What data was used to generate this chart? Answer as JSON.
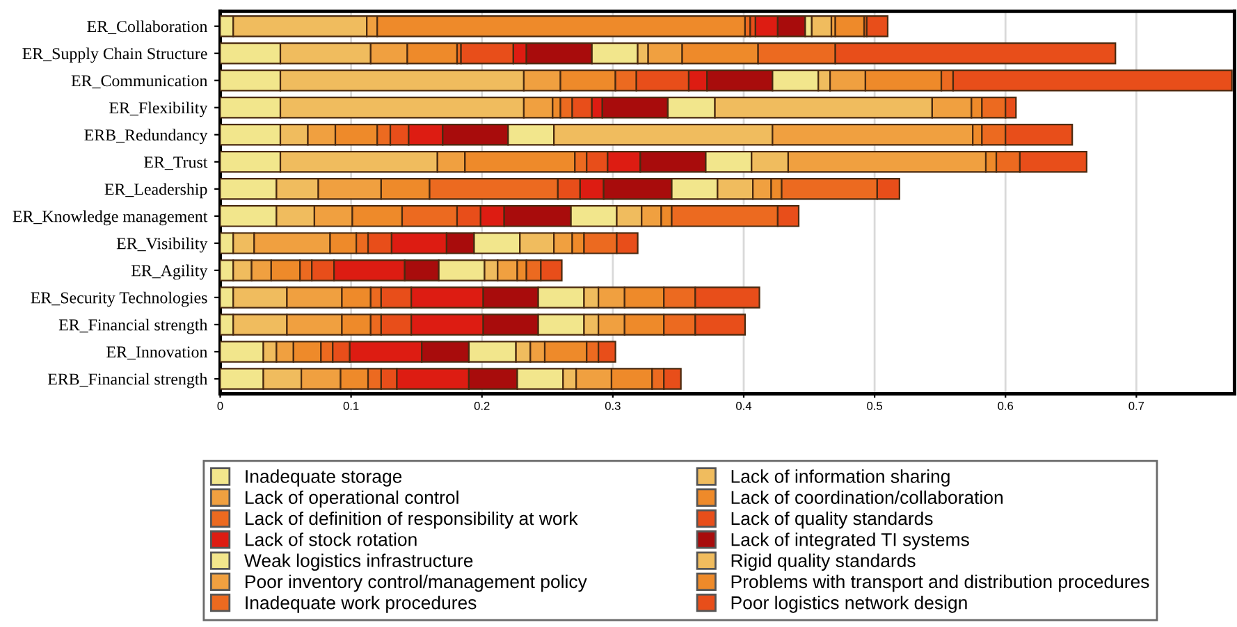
{
  "chart_data": {
    "type": "bar",
    "orientation": "horizontal",
    "stacked": true,
    "categories": [
      "ER_Collaboration",
      "ER_Supply Chain Structure",
      "ER_Communication",
      "ER_Flexibility",
      "ERB_Redundancy",
      "ER_Trust",
      "ER_Leadership",
      "ER_Knowledge management",
      "ER_Visibility",
      "ER_Agility",
      "ER_Security Technologies",
      "ER_Financial strength",
      "ER_Innovation",
      "ERB_Financial strength"
    ],
    "xlim": [
      0,
      0.775
    ],
    "xticks": [
      0,
      0.1,
      0.2,
      0.3,
      0.4,
      0.5,
      0.6,
      0.7
    ],
    "grid": "x",
    "legend": "bottom",
    "series": [
      {
        "name": "Inadequate storage",
        "color": "#f2e68c",
        "values": [
          0.01,
          0.046,
          0.046,
          0.046,
          0.046,
          0.046,
          0.043,
          0.043,
          0.01,
          0.01,
          0.01,
          0.01,
          0.033,
          0.033
        ]
      },
      {
        "name": "Lack of information sharing",
        "color": "#f0bc5e",
        "values": [
          0.102,
          0.069,
          0.186,
          0.186,
          0.021,
          0.12,
          0.032,
          0.029,
          0.016,
          0.014,
          0.041,
          0.041,
          0.01,
          0.029
        ]
      },
      {
        "name": "Lack of operational control",
        "color": "#f0a040",
        "values": [
          0.008,
          0.028,
          0.028,
          0.022,
          0.021,
          0.021,
          0.048,
          0.029,
          0.058,
          0.015,
          0.042,
          0.042,
          0.013,
          0.03
        ]
      },
      {
        "name": "Lack of coordination/collaboration",
        "color": "#ee8a2a",
        "values": [
          0.281,
          0.038,
          0.042,
          0.006,
          0.032,
          0.084,
          0.037,
          0.038,
          0.02,
          0.022,
          0.022,
          0.022,
          0.021,
          0.021
        ]
      },
      {
        "name": "Lack of definition of responsibility at work",
        "color": "#ec6a20",
        "values": [
          0.004,
          0.003,
          0.016,
          0.009,
          0.01,
          0.009,
          0.098,
          0.042,
          0.009,
          0.009,
          0.008,
          0.008,
          0.009,
          0.01
        ]
      },
      {
        "name": "Lack of quality standards",
        "color": "#e84e1a",
        "values": [
          0.004,
          0.04,
          0.04,
          0.015,
          0.014,
          0.016,
          0.017,
          0.018,
          0.018,
          0.017,
          0.023,
          0.023,
          0.013,
          0.012
        ]
      },
      {
        "name": "Lack of stock rotation",
        "color": "#dd1c12",
        "values": [
          0.017,
          0.01,
          0.014,
          0.008,
          0.026,
          0.025,
          0.018,
          0.018,
          0.042,
          0.054,
          0.055,
          0.055,
          0.055,
          0.055
        ]
      },
      {
        "name": "Lack of integrated TI systems",
        "color": "#a80c0c",
        "values": [
          0.021,
          0.05,
          0.05,
          0.05,
          0.05,
          0.05,
          0.052,
          0.051,
          0.021,
          0.026,
          0.042,
          0.042,
          0.036,
          0.037
        ]
      },
      {
        "name": "Weak logistics infrastructure",
        "color": "#f2e68c",
        "values": [
          0.005,
          0.035,
          0.035,
          0.036,
          0.035,
          0.035,
          0.035,
          0.035,
          0.035,
          0.035,
          0.035,
          0.035,
          0.036,
          0.035
        ]
      },
      {
        "name": "Rigid quality standards",
        "color": "#f0bc5e",
        "values": [
          0.015,
          0.008,
          0.009,
          0.166,
          0.167,
          0.028,
          0.027,
          0.019,
          0.026,
          0.01,
          0.011,
          0.011,
          0.011,
          0.01
        ]
      },
      {
        "name": "Poor inventory control/management policy",
        "color": "#f0a040",
        "values": [
          0.003,
          0.026,
          0.027,
          0.03,
          0.153,
          0.151,
          0.014,
          0.015,
          0.014,
          0.015,
          0.02,
          0.02,
          0.011,
          0.027
        ]
      },
      {
        "name": "Problems with transport and distribution procedures",
        "color": "#ee8a2a",
        "values": [
          0.022,
          0.058,
          0.058,
          0.008,
          0.007,
          0.008,
          0.008,
          0.008,
          0.009,
          0.007,
          0.03,
          0.03,
          0.032,
          0.031
        ]
      },
      {
        "name": "Inadequate work procedures",
        "color": "#ec6a20",
        "values": [
          0.002,
          0.059,
          0.009,
          0.018,
          0.018,
          0.018,
          0.073,
          0.081,
          0.025,
          0.011,
          0.024,
          0.024,
          0.009,
          0.009
        ]
      },
      {
        "name": "Poor logistics network design",
        "color": "#e84e1a",
        "values": [
          0.016,
          0.214,
          0.213,
          0.008,
          0.051,
          0.051,
          0.017,
          0.016,
          0.016,
          0.016,
          0.049,
          0.038,
          0.013,
          0.013
        ]
      }
    ]
  }
}
